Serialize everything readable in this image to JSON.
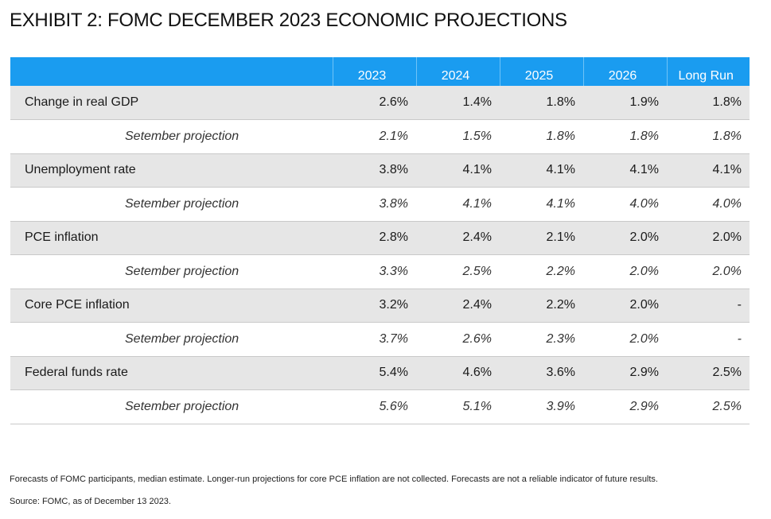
{
  "title": "EXHIBIT 2: FOMC DECEMBER 2023 ECONOMIC PROJECTIONS",
  "columns": [
    "2023",
    "2024",
    "2025",
    "2026",
    "Long Run"
  ],
  "rows": [
    {
      "label": "Change in real GDP",
      "values": [
        "2.6%",
        "1.4%",
        "1.8%",
        "1.9%",
        "1.8%"
      ],
      "sub_label": "Setember projection",
      "sub_values": [
        "2.1%",
        "1.5%",
        "1.8%",
        "1.8%",
        "1.8%"
      ]
    },
    {
      "label": "Unemployment rate",
      "values": [
        "3.8%",
        "4.1%",
        "4.1%",
        "4.1%",
        "4.1%"
      ],
      "sub_label": "Setember projection",
      "sub_values": [
        "3.8%",
        "4.1%",
        "4.1%",
        "4.0%",
        "4.0%"
      ]
    },
    {
      "label": "PCE inflation",
      "values": [
        "2.8%",
        "2.4%",
        "2.1%",
        "2.0%",
        "2.0%"
      ],
      "sub_label": "Setember projection",
      "sub_values": [
        "3.3%",
        "2.5%",
        "2.2%",
        "2.0%",
        "2.0%"
      ]
    },
    {
      "label": "Core PCE inflation",
      "values": [
        "3.2%",
        "2.4%",
        "2.2%",
        "2.0%",
        "-"
      ],
      "sub_label": "Setember projection",
      "sub_values": [
        "3.7%",
        "2.6%",
        "2.3%",
        "2.0%",
        "-"
      ]
    },
    {
      "label": "Federal funds rate",
      "values": [
        "5.4%",
        "4.6%",
        "3.6%",
        "2.9%",
        "2.5%"
      ],
      "sub_label": "Setember projection",
      "sub_values": [
        "5.6%",
        "5.1%",
        "3.9%",
        "2.9%",
        "2.5%"
      ]
    }
  ],
  "footnote": "Forecasts of FOMC participants, median estimate. Longer-run projections for core PCE inflation are not collected. Forecasts are not a reliable indicator of future results.",
  "source": "Source: FOMC, as of December 13 2023.",
  "colors": {
    "header": "#1a9cf0",
    "main_row": "#e6e6e6"
  }
}
